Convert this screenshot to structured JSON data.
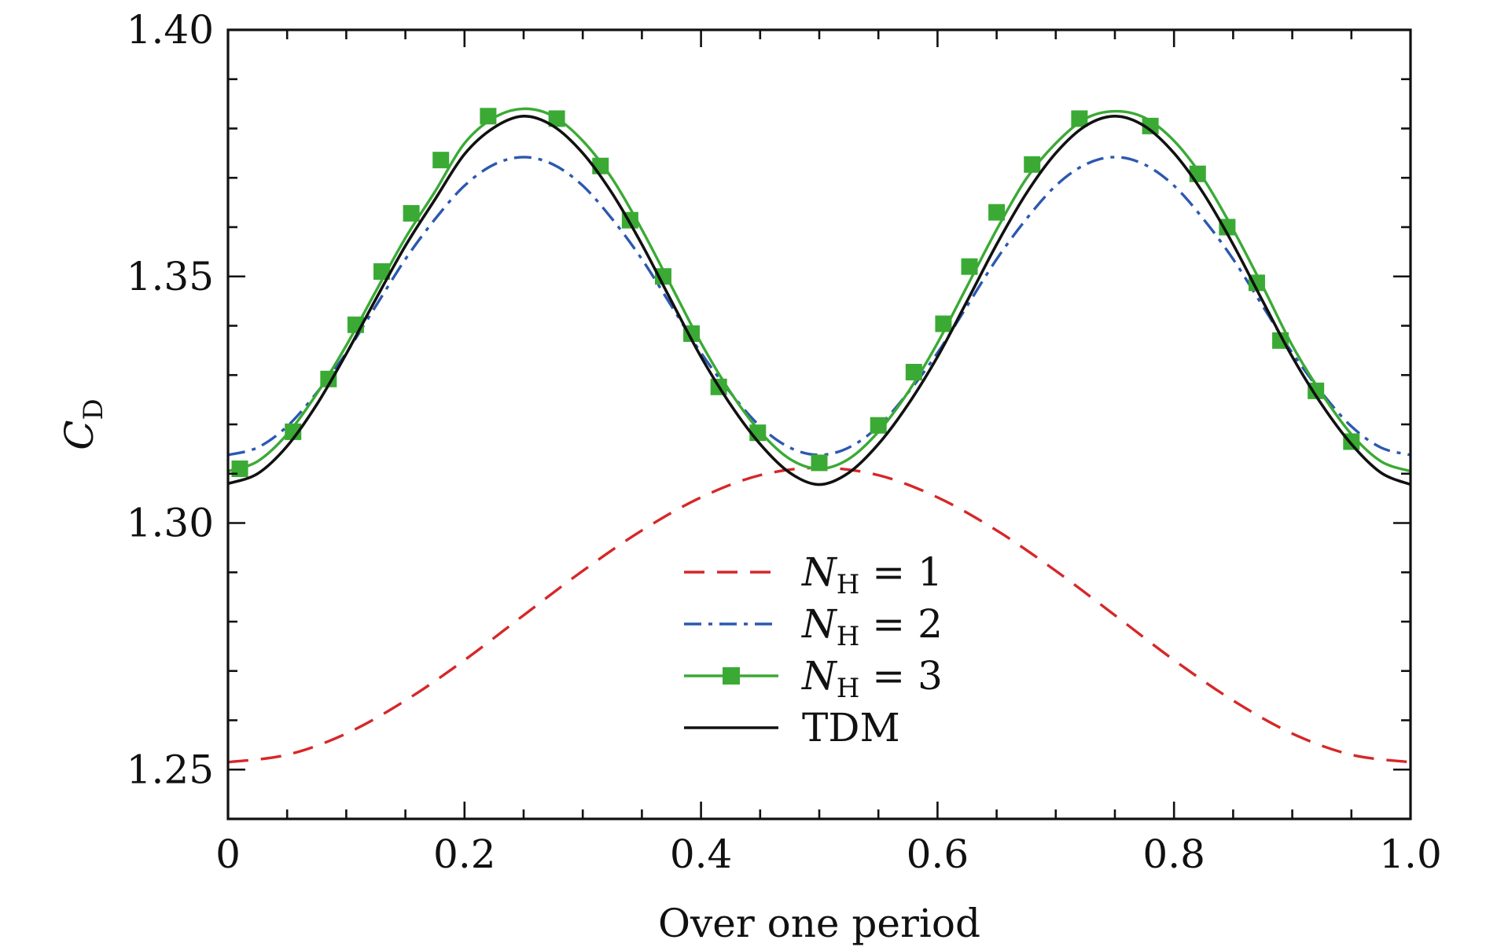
{
  "chart_data": {
    "type": "line",
    "title": "",
    "xlabel": "Over one period",
    "ylabel": "C_D",
    "ylabel_parts": {
      "main": "C",
      "subscript": "D"
    },
    "xlim": [
      0,
      1.0
    ],
    "ylim": [
      1.24,
      1.4
    ],
    "xticks": [
      {
        "value": 0,
        "label": "0"
      },
      {
        "value": 0.2,
        "label": "0.2"
      },
      {
        "value": 0.4,
        "label": "0.4"
      },
      {
        "value": 0.6,
        "label": "0.6"
      },
      {
        "value": 0.8,
        "label": "0.8"
      },
      {
        "value": 1.0,
        "label": "1.0"
      }
    ],
    "yticks": [
      {
        "value": 1.25,
        "label": "1.25"
      },
      {
        "value": 1.3,
        "label": "1.30"
      },
      {
        "value": 1.35,
        "label": "1.35"
      },
      {
        "value": 1.4,
        "label": "1.40"
      }
    ],
    "x_minor_step": 0.05,
    "y_minor_step": 0.01,
    "legend_position": "lower-center",
    "series": [
      {
        "name": "N_H = 1",
        "legend_main": "N",
        "legend_sub": "H",
        "legend_rest": " = 1",
        "color": "#d62728",
        "style": "dashed",
        "x": [
          0,
          0.05,
          0.1,
          0.15,
          0.2,
          0.25,
          0.3,
          0.35,
          0.4,
          0.45,
          0.5,
          0.55,
          0.6,
          0.65,
          0.7,
          0.75,
          0.8,
          0.85,
          0.9,
          0.95,
          1.0
        ],
        "values": [
          1.2515,
          1.253,
          1.2573,
          1.264,
          1.2722,
          1.2813,
          1.2903,
          1.2985,
          1.3052,
          1.3097,
          1.3112,
          1.3097,
          1.3052,
          1.2985,
          1.2903,
          1.2813,
          1.2722,
          1.264,
          1.2573,
          1.253,
          1.2515
        ]
      },
      {
        "name": "N_H = 2",
        "legend_main": "N",
        "legend_sub": "H",
        "legend_rest": " = 2",
        "color": "#2c58b0",
        "style": "dashdot",
        "x": [
          0,
          0.025,
          0.05,
          0.075,
          0.1,
          0.125,
          0.15,
          0.175,
          0.2,
          0.225,
          0.25,
          0.275,
          0.3,
          0.325,
          0.35,
          0.375,
          0.4,
          0.425,
          0.45,
          0.475,
          0.5,
          0.525,
          0.55,
          0.575,
          0.6,
          0.625,
          0.65,
          0.675,
          0.7,
          0.725,
          0.75,
          0.775,
          0.8,
          0.825,
          0.85,
          0.875,
          0.9,
          0.925,
          0.95,
          0.975,
          1.0
        ],
        "values": [
          1.3138,
          1.3153,
          1.3196,
          1.3264,
          1.3345,
          1.344,
          1.3535,
          1.3616,
          1.3684,
          1.3727,
          1.3742,
          1.3727,
          1.3684,
          1.3616,
          1.3535,
          1.344,
          1.3345,
          1.3264,
          1.3196,
          1.3153,
          1.3138,
          1.3153,
          1.3196,
          1.3264,
          1.3345,
          1.344,
          1.3535,
          1.3616,
          1.3684,
          1.3727,
          1.3742,
          1.3727,
          1.3684,
          1.3616,
          1.3535,
          1.344,
          1.3345,
          1.3264,
          1.3196,
          1.3153,
          1.3138
        ]
      },
      {
        "name": "N_H = 3",
        "legend_main": "N",
        "legend_sub": "H",
        "legend_rest": " = 3",
        "color": "#3aaa35",
        "style": "solid-square",
        "x": [
          0,
          0.025,
          0.05,
          0.075,
          0.1,
          0.125,
          0.15,
          0.175,
          0.2,
          0.225,
          0.25,
          0.275,
          0.3,
          0.325,
          0.35,
          0.375,
          0.4,
          0.425,
          0.45,
          0.475,
          0.5,
          0.525,
          0.55,
          0.575,
          0.6,
          0.625,
          0.65,
          0.675,
          0.7,
          0.725,
          0.75,
          0.775,
          0.8,
          0.825,
          0.85,
          0.875,
          0.9,
          0.925,
          0.95,
          0.975,
          1.0
        ],
        "values": [
          1.3105,
          1.3125,
          1.318,
          1.3262,
          1.336,
          1.347,
          1.3578,
          1.3672,
          1.377,
          1.3822,
          1.384,
          1.3825,
          1.3775,
          1.3698,
          1.3595,
          1.348,
          1.3365,
          1.3265,
          1.3185,
          1.313,
          1.311,
          1.313,
          1.3185,
          1.3265,
          1.3365,
          1.348,
          1.3595,
          1.3698,
          1.377,
          1.382,
          1.3835,
          1.3822,
          1.3775,
          1.3698,
          1.3595,
          1.348,
          1.336,
          1.3262,
          1.318,
          1.3125,
          1.3105
        ],
        "markers_x": [
          0.01,
          0.055,
          0.085,
          0.108,
          0.13,
          0.155,
          0.18,
          0.22,
          0.278,
          0.315,
          0.34,
          0.368,
          0.392,
          0.415,
          0.448,
          0.5,
          0.55,
          0.58,
          0.605,
          0.627,
          0.65,
          0.68,
          0.72,
          0.78,
          0.82,
          0.845,
          0.87,
          0.89,
          0.92,
          0.95
        ],
        "markers_y": [
          1.311,
          1.3185,
          1.3292,
          1.3402,
          1.351,
          1.3628,
          1.3736,
          1.3825,
          1.382,
          1.3724,
          1.3614,
          1.35,
          1.3384,
          1.3276,
          1.3183,
          1.3122,
          1.3198,
          1.3306,
          1.3404,
          1.352,
          1.363,
          1.3727,
          1.382,
          1.3805,
          1.3708,
          1.36,
          1.3487,
          1.337,
          1.3268,
          1.3165
        ]
      },
      {
        "name": "TDM",
        "legend_main": "TDM",
        "legend_sub": "",
        "legend_rest": "",
        "color": "#111111",
        "style": "solid",
        "x": [
          0,
          0.025,
          0.05,
          0.075,
          0.1,
          0.125,
          0.15,
          0.175,
          0.2,
          0.225,
          0.25,
          0.275,
          0.3,
          0.325,
          0.35,
          0.375,
          0.4,
          0.425,
          0.45,
          0.475,
          0.5,
          0.525,
          0.55,
          0.575,
          0.6,
          0.625,
          0.65,
          0.675,
          0.7,
          0.725,
          0.75,
          0.775,
          0.8,
          0.825,
          0.85,
          0.875,
          0.9,
          0.925,
          0.95,
          0.975,
          1.0
        ],
        "values": [
          1.308,
          1.31,
          1.3156,
          1.324,
          1.3343,
          1.3454,
          1.3562,
          1.3656,
          1.3748,
          1.3802,
          1.3825,
          1.3805,
          1.375,
          1.3668,
          1.3565,
          1.345,
          1.3337,
          1.324,
          1.316,
          1.3102,
          1.3078,
          1.3102,
          1.316,
          1.324,
          1.3337,
          1.345,
          1.3565,
          1.3668,
          1.375,
          1.3805,
          1.3825,
          1.3805,
          1.375,
          1.3668,
          1.3565,
          1.345,
          1.3337,
          1.324,
          1.316,
          1.3102,
          1.3078
        ]
      }
    ]
  }
}
